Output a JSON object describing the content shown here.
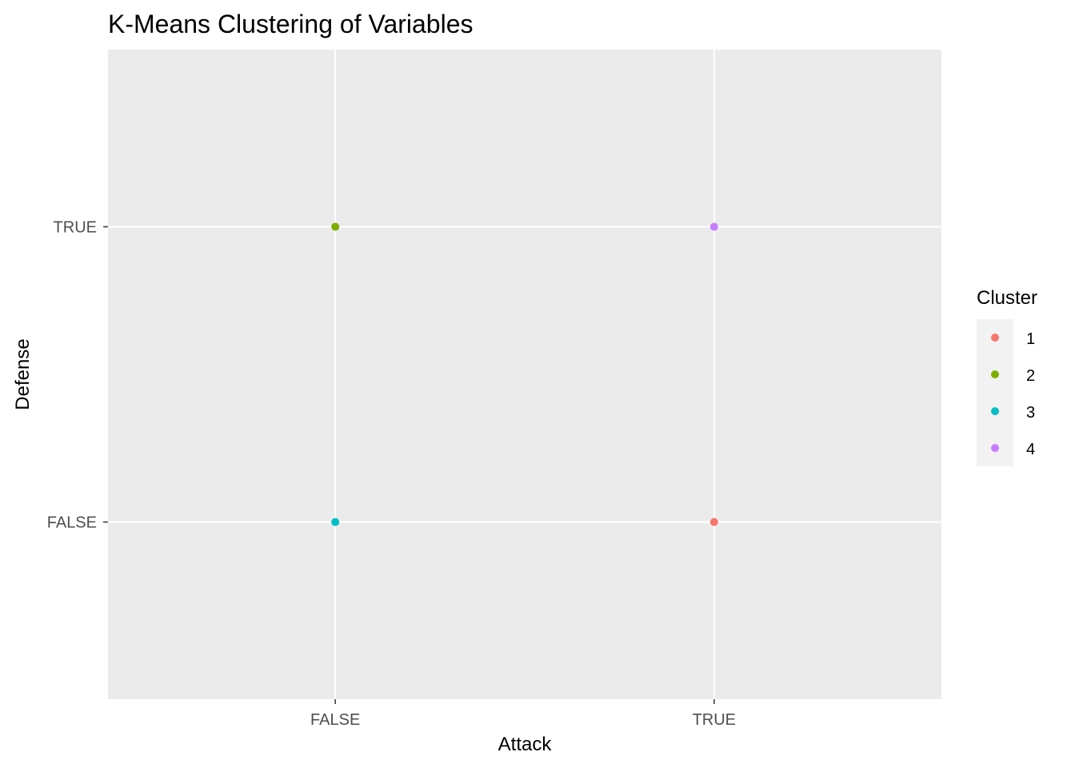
{
  "chart_data": {
    "type": "scatter",
    "title": "K-Means Clustering of Variables",
    "xlabel": "Attack",
    "ylabel": "Defense",
    "x_categories": [
      "FALSE",
      "TRUE"
    ],
    "y_categories": [
      "FALSE",
      "TRUE"
    ],
    "points": [
      {
        "x": "FALSE",
        "y": "TRUE",
        "cluster": "2"
      },
      {
        "x": "TRUE",
        "y": "TRUE",
        "cluster": "4"
      },
      {
        "x": "FALSE",
        "y": "FALSE",
        "cluster": "3"
      },
      {
        "x": "TRUE",
        "y": "FALSE",
        "cluster": "1"
      }
    ],
    "legend": {
      "title": "Cluster",
      "position": "right",
      "entries": [
        {
          "label": "1",
          "color": "#F8766D"
        },
        {
          "label": "2",
          "color": "#7CAE00"
        },
        {
          "label": "3",
          "color": "#00BFC4"
        },
        {
          "label": "4",
          "color": "#C77CFF"
        }
      ]
    },
    "grid": true,
    "panel_background": "#EBEBEB"
  }
}
